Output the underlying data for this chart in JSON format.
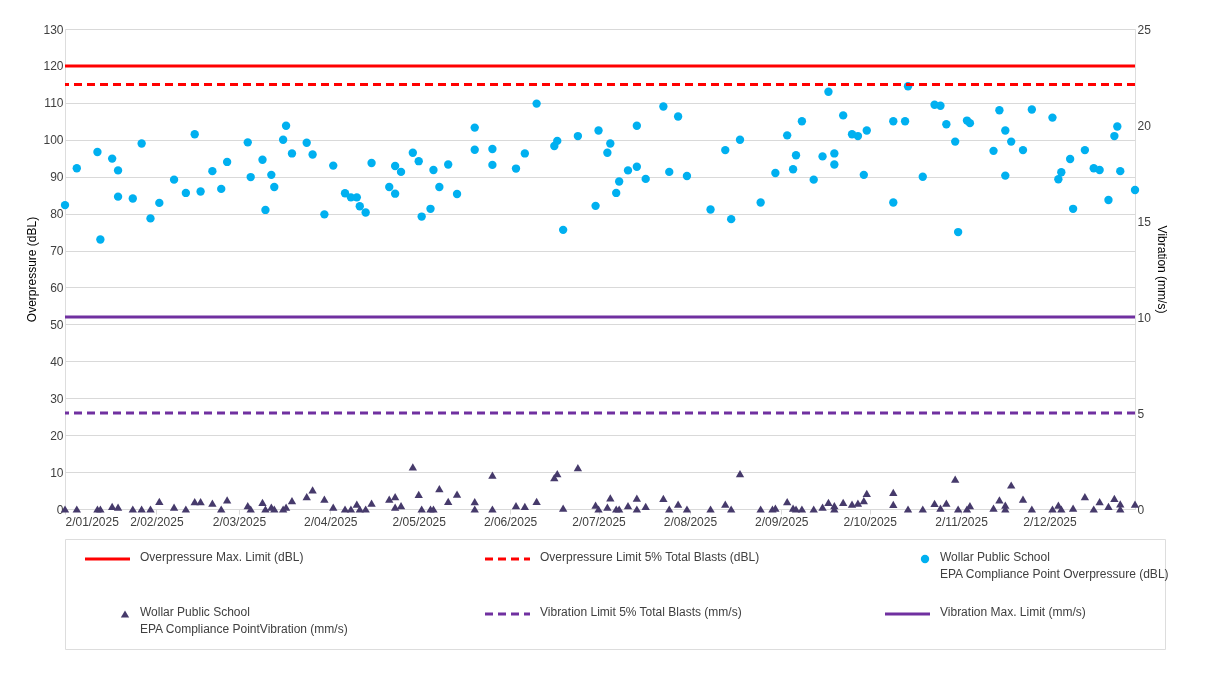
{
  "chart_data": {
    "type": "scatter",
    "xlabel": null,
    "ylabel": "Overpressure (dBL)",
    "y2label": "Vibration (mm/s)",
    "xlim": [
      "2025-01-02",
      "2025-12-31"
    ],
    "xticks": [
      {
        "value": "2025-01-02",
        "label": "2/01/2025"
      },
      {
        "value": "2025-02-02",
        "label": "2/02/2025"
      },
      {
        "value": "2025-03-02",
        "label": "2/03/2025"
      },
      {
        "value": "2025-04-02",
        "label": "2/04/2025"
      },
      {
        "value": "2025-05-02",
        "label": "2/05/2025"
      },
      {
        "value": "2025-06-02",
        "label": "2/06/2025"
      },
      {
        "value": "2025-07-02",
        "label": "2/07/2025"
      },
      {
        "value": "2025-08-02",
        "label": "2/08/2025"
      },
      {
        "value": "2025-09-02",
        "label": "2/09/2025"
      },
      {
        "value": "2025-10-02",
        "label": "2/10/2025"
      },
      {
        "value": "2025-11-02",
        "label": "2/11/2025"
      },
      {
        "value": "2025-12-02",
        "label": "2/12/2025"
      }
    ],
    "ylim": [
      0,
      130
    ],
    "yticks": [
      0,
      10,
      20,
      30,
      40,
      50,
      60,
      70,
      80,
      90,
      100,
      110,
      120,
      130
    ],
    "y2lim": [
      0,
      25
    ],
    "y2ticks": [
      0,
      5,
      10,
      15,
      20,
      25
    ],
    "grid": "y",
    "legend": "bottom",
    "ref_lines": [
      {
        "axis": "y",
        "value": 120,
        "label": "Overpressure Max. Limit (dBL)",
        "color": "#ff0000",
        "line_style": "solid"
      },
      {
        "axis": "y",
        "value": 115,
        "label": "Overpressure  Limit 5% Total Blasts (dBL)",
        "color": "#ff0000",
        "line_style": "dashed"
      },
      {
        "axis": "y2",
        "value": 5,
        "label": "Vibration Limit 5% Total Blasts (mm/s)",
        "color": "#7030a0",
        "line_style": "dashed"
      },
      {
        "axis": "y2",
        "value": 10,
        "label": "Vibration Max. Limit (mm/s)",
        "color": "#7030a0",
        "line_style": "solid"
      }
    ],
    "series": [
      {
        "name": "Wollar Public School\nEPA Compliance Point Overpressure (dBL)",
        "color": "#00b0f0",
        "marker": "circle",
        "axis": "y",
        "x": [
          "2025-01-02",
          "2025-01-06",
          "2025-01-13",
          "2025-01-14",
          "2025-01-18",
          "2025-01-20",
          "2025-01-20",
          "2025-01-25",
          "2025-01-28",
          "2025-01-31",
          "2025-02-03",
          "2025-02-08",
          "2025-02-12",
          "2025-02-15",
          "2025-02-17",
          "2025-02-21",
          "2025-02-24",
          "2025-02-26",
          "2025-03-05",
          "2025-03-06",
          "2025-03-10",
          "2025-03-11",
          "2025-03-13",
          "2025-03-14",
          "2025-03-17",
          "2025-03-18",
          "2025-03-20",
          "2025-03-25",
          "2025-03-27",
          "2025-03-31",
          "2025-04-03",
          "2025-04-07",
          "2025-04-09",
          "2025-04-11",
          "2025-04-12",
          "2025-04-14",
          "2025-04-16",
          "2025-04-22",
          "2025-04-24",
          "2025-04-24",
          "2025-04-26",
          "2025-04-30",
          "2025-05-02",
          "2025-05-03",
          "2025-05-06",
          "2025-05-07",
          "2025-05-09",
          "2025-05-12",
          "2025-05-15",
          "2025-05-21",
          "2025-05-21",
          "2025-05-27",
          "2025-05-27",
          "2025-06-04",
          "2025-06-07",
          "2025-06-11",
          "2025-06-17",
          "2025-06-18",
          "2025-06-20",
          "2025-06-25",
          "2025-07-01",
          "2025-07-02",
          "2025-07-05",
          "2025-07-06",
          "2025-07-08",
          "2025-07-09",
          "2025-07-12",
          "2025-07-15",
          "2025-07-15",
          "2025-07-18",
          "2025-07-24",
          "2025-07-26",
          "2025-07-29",
          "2025-08-01",
          "2025-08-09",
          "2025-08-14",
          "2025-08-16",
          "2025-08-19",
          "2025-08-26",
          "2025-08-31",
          "2025-09-04",
          "2025-09-06",
          "2025-09-07",
          "2025-09-09",
          "2025-09-13",
          "2025-09-16",
          "2025-09-18",
          "2025-09-20",
          "2025-09-20",
          "2025-09-23",
          "2025-09-26",
          "2025-09-28",
          "2025-09-30",
          "2025-10-01",
          "2025-10-10",
          "2025-10-10",
          "2025-10-15",
          "2025-10-14",
          "2025-10-20",
          "2025-10-24",
          "2025-10-26",
          "2025-10-28",
          "2025-10-31",
          "2025-11-01",
          "2025-11-04",
          "2025-11-05",
          "2025-11-13",
          "2025-11-15",
          "2025-11-17",
          "2025-11-17",
          "2025-11-19",
          "2025-11-23",
          "2025-11-26",
          "2025-12-03",
          "2025-12-05",
          "2025-12-06",
          "2025-12-09",
          "2025-12-10",
          "2025-12-14",
          "2025-12-17",
          "2025-12-19",
          "2025-12-22",
          "2025-12-24",
          "2025-12-25",
          "2025-12-26",
          "2025-12-31"
        ],
        "values": [
          82.3,
          92.3,
          96.7,
          73,
          94.9,
          84.6,
          91.7,
          84.1,
          99,
          78.7,
          82.9,
          89.2,
          85.6,
          101.5,
          86,
          91.5,
          86.7,
          94,
          99.3,
          89.9,
          94.6,
          81,
          90.5,
          87.2,
          100,
          103.8,
          96.3,
          99.2,
          96,
          79.8,
          93,
          85.5,
          84.4,
          84.4,
          82,
          80.3,
          93.7,
          87.2,
          85.4,
          92.9,
          91.3,
          96.5,
          94.2,
          79.2,
          81.3,
          91.8,
          87.2,
          93.3,
          85.3,
          103.3,
          97.3,
          93.2,
          97.5,
          92.2,
          96.3,
          109.8,
          98.3,
          99.7,
          75.6,
          101,
          82.1,
          102.5,
          96.5,
          99,
          85.6,
          88.7,
          91.7,
          92.7,
          103.8,
          89.4,
          109,
          91.3,
          106.3,
          90.2,
          81.1,
          97.2,
          78.5,
          100,
          83,
          91,
          101.2,
          92,
          95.8,
          105,
          89.2,
          95.5,
          113,
          96.3,
          93.3,
          106.6,
          101.5,
          101,
          90.5,
          102.5,
          83,
          105,
          114.5,
          105,
          90,
          109.5,
          109.2,
          104.2,
          99.5,
          75,
          105.2,
          104.5,
          97,
          108,
          102.5,
          90.3,
          99.5,
          97.2,
          108.2,
          106,
          89.3,
          91.2,
          94.8,
          81.3,
          97.2,
          92.3,
          91.8,
          83.7,
          101,
          103.6,
          91.5,
          86.4
        ]
      },
      {
        "name": "Wollar Public School\nEPA Compliance PointVibration (mm/s)",
        "color": "#463a6b",
        "marker": "triangle",
        "axis": "y2",
        "x": [
          "2025-01-02",
          "2025-01-06",
          "2025-01-13",
          "2025-01-14",
          "2025-01-18",
          "2025-01-20",
          "2025-01-25",
          "2025-01-28",
          "2025-01-31",
          "2025-02-03",
          "2025-02-08",
          "2025-02-12",
          "2025-02-15",
          "2025-02-17",
          "2025-02-21",
          "2025-02-24",
          "2025-02-26",
          "2025-03-05",
          "2025-03-06",
          "2025-03-10",
          "2025-03-11",
          "2025-03-13",
          "2025-03-14",
          "2025-03-17",
          "2025-03-18",
          "2025-03-20",
          "2025-03-25",
          "2025-03-27",
          "2025-03-31",
          "2025-04-03",
          "2025-04-07",
          "2025-04-09",
          "2025-04-11",
          "2025-04-12",
          "2025-04-14",
          "2025-04-16",
          "2025-04-22",
          "2025-04-24",
          "2025-04-24",
          "2025-04-26",
          "2025-04-30",
          "2025-05-02",
          "2025-05-03",
          "2025-05-06",
          "2025-05-07",
          "2025-05-09",
          "2025-05-12",
          "2025-05-15",
          "2025-05-21",
          "2025-05-21",
          "2025-05-27",
          "2025-05-27",
          "2025-06-04",
          "2025-06-07",
          "2025-06-11",
          "2025-06-17",
          "2025-06-18",
          "2025-06-20",
          "2025-06-25",
          "2025-07-01",
          "2025-07-02",
          "2025-07-05",
          "2025-07-06",
          "2025-07-08",
          "2025-07-09",
          "2025-07-12",
          "2025-07-15",
          "2025-07-15",
          "2025-07-18",
          "2025-07-24",
          "2025-07-26",
          "2025-07-29",
          "2025-08-01",
          "2025-08-09",
          "2025-08-14",
          "2025-08-16",
          "2025-08-19",
          "2025-08-26",
          "2025-08-30",
          "2025-08-31",
          "2025-09-04",
          "2025-09-06",
          "2025-09-07",
          "2025-09-09",
          "2025-09-13",
          "2025-09-16",
          "2025-09-18",
          "2025-09-20",
          "2025-09-20",
          "2025-09-23",
          "2025-09-26",
          "2025-09-28",
          "2025-09-30",
          "2025-10-01",
          "2025-10-10",
          "2025-10-10",
          "2025-10-15",
          "2025-10-20",
          "2025-10-24",
          "2025-10-26",
          "2025-10-28",
          "2025-10-31",
          "2025-11-01",
          "2025-11-04",
          "2025-11-05",
          "2025-11-13",
          "2025-11-15",
          "2025-11-17",
          "2025-11-17",
          "2025-11-19",
          "2025-11-23",
          "2025-11-26",
          "2025-12-03",
          "2025-12-05",
          "2025-12-06",
          "2025-12-10",
          "2025-12-14",
          "2025-12-17",
          "2025-12-19",
          "2025-12-22",
          "2025-12-24",
          "2025-12-26",
          "2025-12-26",
          "2025-12-31"
        ],
        "values": [
          0,
          0,
          0,
          0,
          0.14,
          0.1,
          0,
          0,
          0,
          0.4,
          0.1,
          0,
          0.38,
          0.38,
          0.3,
          0,
          0.48,
          0.17,
          0,
          0.34,
          0,
          0.1,
          0,
          0,
          0.1,
          0.43,
          0.65,
          1.0,
          0.52,
          0.1,
          0,
          0,
          0.26,
          0,
          0,
          0.3,
          0.52,
          0.65,
          0.1,
          0.17,
          2.2,
          0.76,
          0,
          0,
          0,
          1.06,
          0.4,
          0.77,
          0,
          0.38,
          1.77,
          0,
          0.17,
          0.14,
          0.4,
          1.63,
          1.84,
          0.05,
          2.15,
          0.2,
          0,
          0.1,
          0.58,
          0,
          0,
          0.17,
          0.57,
          0,
          0.14,
          0.55,
          0,
          0.26,
          0,
          0,
          0.26,
          0,
          1.84,
          0,
          0,
          0.05,
          0.38,
          0.05,
          0,
          0,
          0,
          0.1,
          0.34,
          0,
          0.17,
          0.34,
          0.26,
          0.3,
          0.43,
          0.82,
          0.86,
          0.24,
          0,
          0,
          0.29,
          0.05,
          0.3,
          1.55,
          0,
          0,
          0.17,
          0.05,
          0.48,
          0.2,
          0,
          1.25,
          0.52,
          0,
          0,
          0.2,
          0,
          0.05,
          0.65,
          0,
          0.38,
          0.14,
          0.55,
          0.27,
          0,
          0.26
        ]
      }
    ]
  }
}
